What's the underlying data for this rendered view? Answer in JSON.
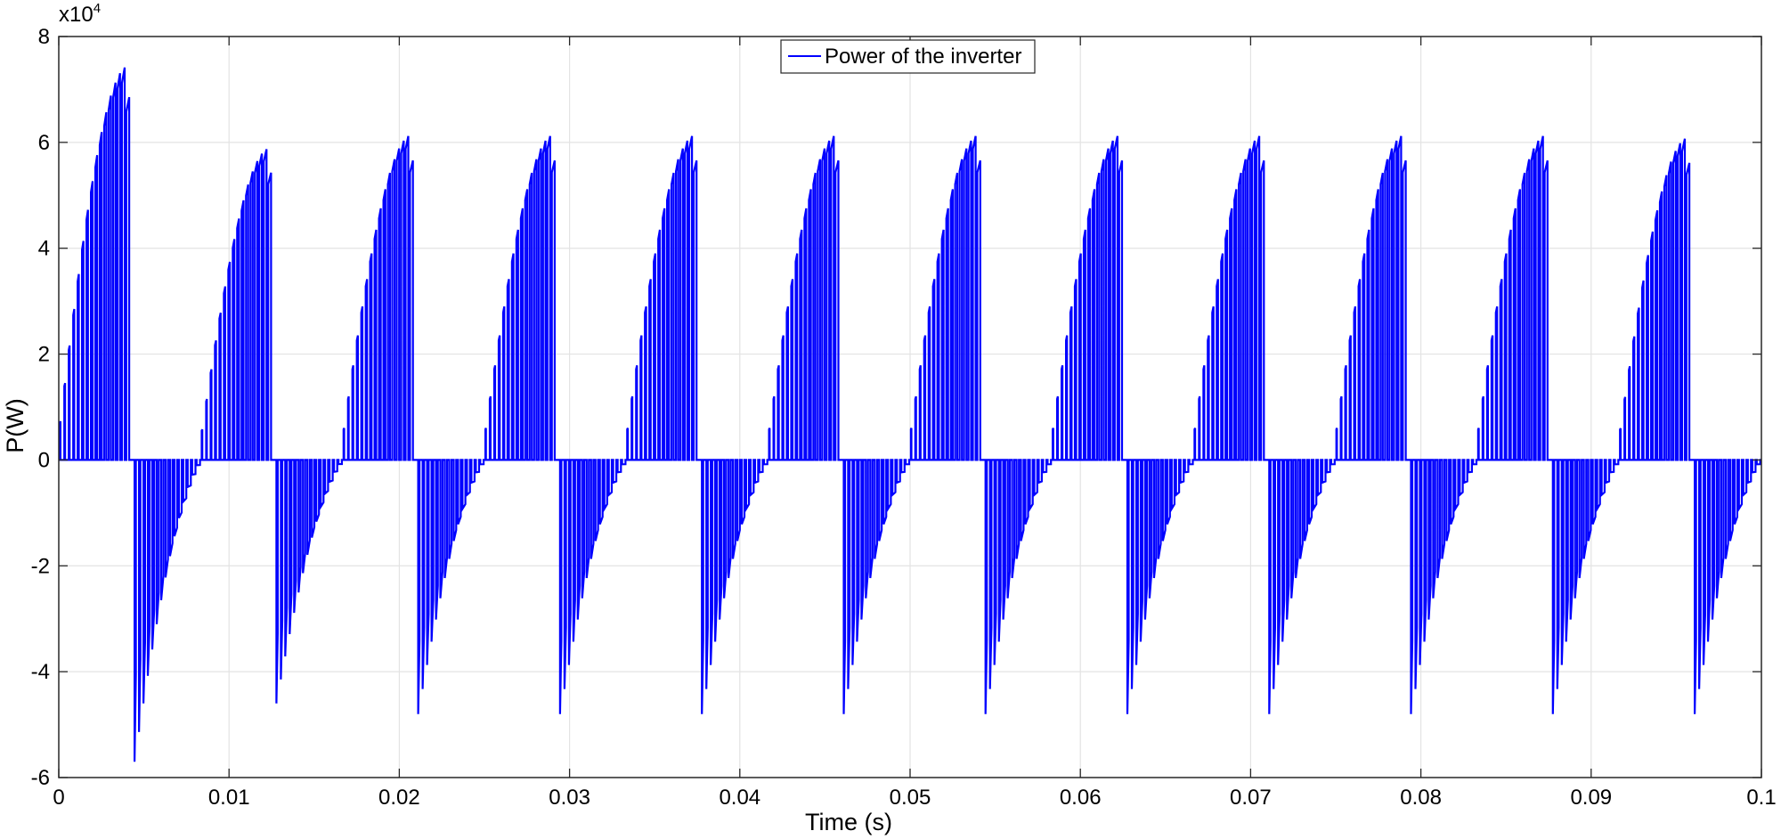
{
  "chart_data": {
    "type": "line",
    "title": "",
    "xlabel": "Time (s)",
    "ylabel": "P(W)",
    "exponent_label": "x10",
    "exponent_power": "4",
    "xlim": [
      0,
      0.1
    ],
    "ylim": [
      -6,
      8
    ],
    "y_scale_factor": 10000,
    "xticks": [
      0,
      0.01,
      0.02,
      0.03,
      0.04,
      0.05,
      0.06,
      0.07,
      0.08,
      0.09,
      0.1
    ],
    "xtick_labels": [
      "0",
      "0.01",
      "0.02",
      "0.03",
      "0.04",
      "0.05",
      "0.06",
      "0.07",
      "0.08",
      "0.09",
      "0.1"
    ],
    "yticks": [
      -6,
      -4,
      -2,
      0,
      2,
      4,
      6,
      8
    ],
    "ytick_labels": [
      "-6",
      "-4",
      "-2",
      "0",
      "2",
      "4",
      "6",
      "8"
    ],
    "grid": true,
    "legend_position": "top-center",
    "series": [
      {
        "name": "Power of the inverter",
        "color": "#0000ff",
        "fundamental_period_s": 0.00833,
        "pulses_per_half_cycle": 16,
        "positive_peak": [
          7.45,
          5.9,
          6.15,
          6.15,
          6.15,
          6.15,
          6.15,
          6.15,
          6.15,
          6.15,
          6.15,
          6.1
        ],
        "negative_peak": [
          -5.7,
          -4.6,
          -4.8,
          -4.8,
          -4.8,
          -4.8,
          -4.8,
          -4.8,
          -4.8,
          -4.8,
          -4.8,
          -4.8
        ]
      }
    ]
  }
}
